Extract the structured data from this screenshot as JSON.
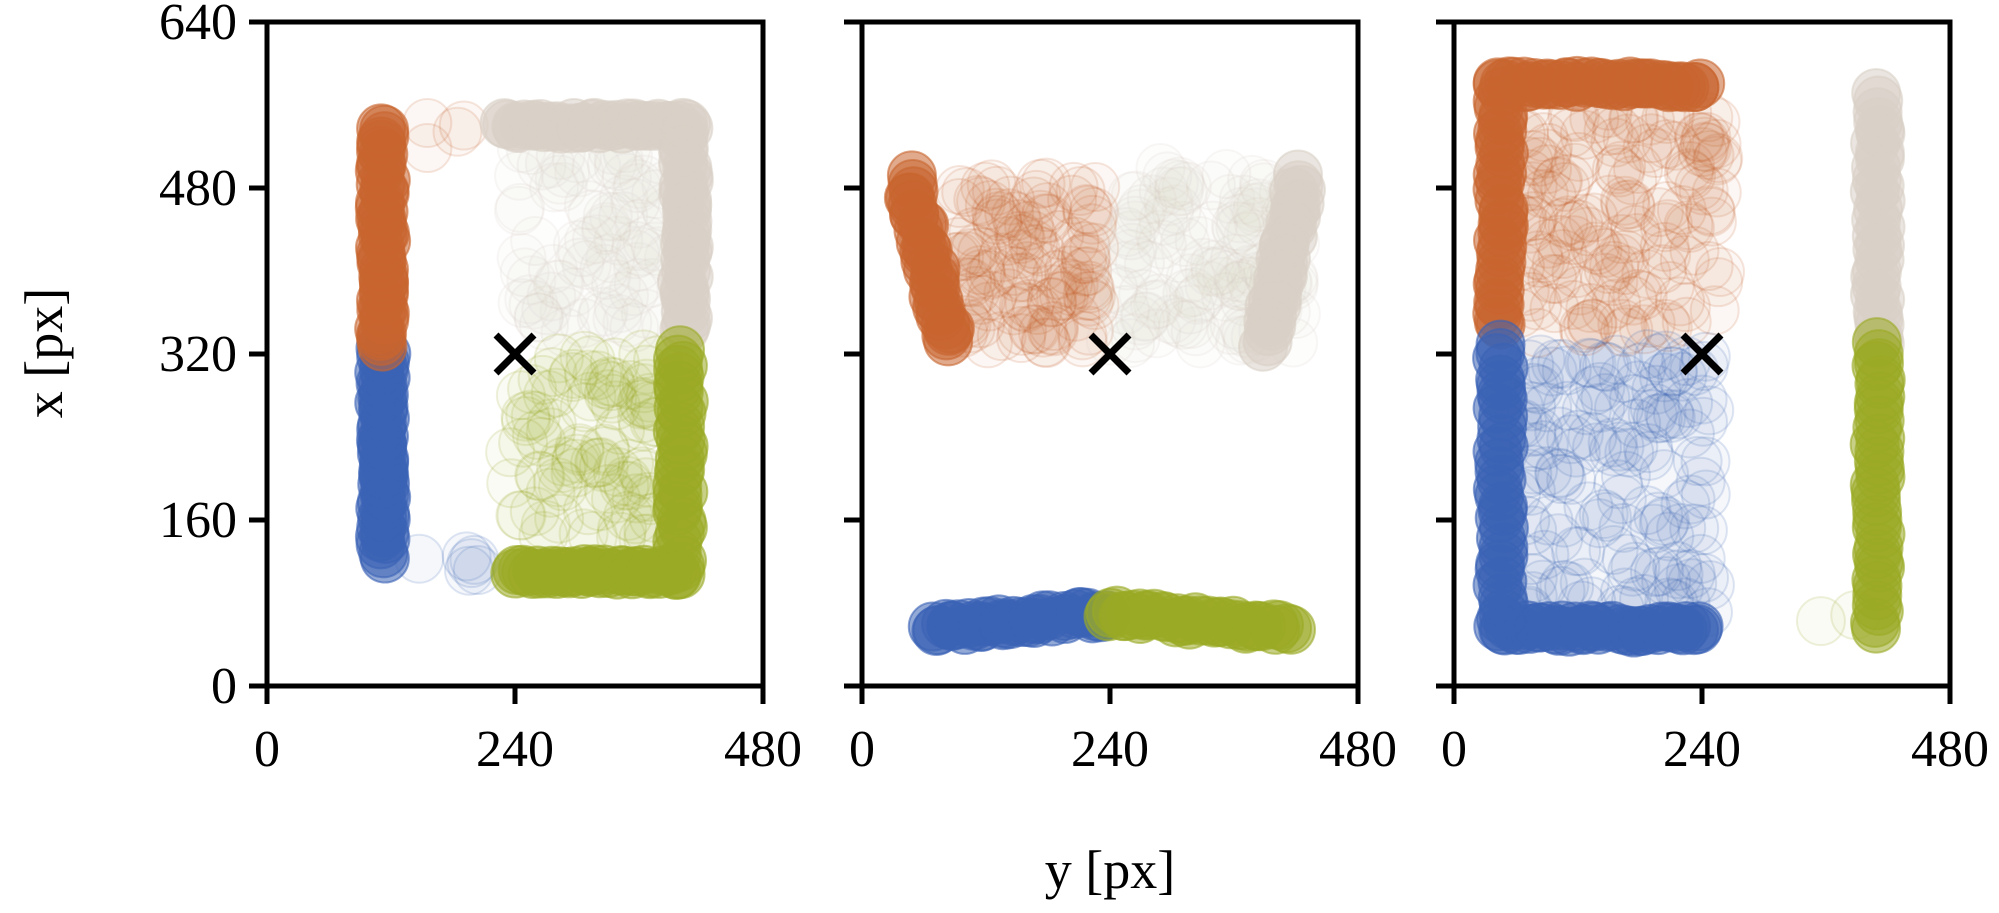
{
  "chart_data": {
    "type": "scatter",
    "xlabel": "y [px]",
    "ylabel": "x [px]",
    "xlim": [
      0,
      480
    ],
    "ylim": [
      0,
      640
    ],
    "xticks": [
      "0",
      "240",
      "480"
    ],
    "yticks": [
      "0",
      "160",
      "320",
      "480",
      "640"
    ],
    "colors": {
      "blue": "#3b63b5",
      "orange": "#c8652f",
      "beige": "#d8d0c7",
      "green": "#9aaa24"
    },
    "center_marker": {
      "symbol": "×",
      "x": 240,
      "y": 320
    },
    "panels": [
      {
        "series": [
          {
            "color": "blue",
            "strokes": [
              {
                "points": [
                  [
                    112,
                    125
                  ],
                  [
                    112,
                    325
                  ]
                ],
                "density": 42,
                "jitter": 7
              }
            ],
            "clouds": [
              {
                "x": [
                  130,
                  230
                ],
                "y": [
                  105,
                  125
                ],
                "n": 6
              }
            ]
          },
          {
            "color": "orange",
            "strokes": [
              {
                "points": [
                  [
                    112,
                    325
                  ],
                  [
                    112,
                    540
                  ]
                ],
                "density": 42,
                "jitter": 7
              }
            ],
            "clouds": [
              {
                "x": [
                  150,
                  210
                ],
                "y": [
                  510,
                  545
                ],
                "n": 4
              }
            ]
          },
          {
            "color": "beige",
            "strokes": [
              {
                "points": [
                  [
                    230,
                    540
                  ],
                  [
                    405,
                    540
                  ]
                ],
                "density": 34,
                "jitter": 6
              },
              {
                "points": [
                  [
                    405,
                    540
                  ],
                  [
                    405,
                    345
                  ]
                ],
                "density": 30,
                "jitter": 7
              }
            ],
            "clouds": [
              {
                "x": [
                  240,
                  390
                ],
                "y": [
                  340,
                  520
                ],
                "n": 90
              }
            ]
          },
          {
            "color": "green",
            "strokes": [
              {
                "points": [
                  [
                    240,
                    110
                  ],
                  [
                    400,
                    110
                  ]
                ],
                "density": 36,
                "jitter": 6
              },
              {
                "points": [
                  [
                    400,
                    110
                  ],
                  [
                    400,
                    325
                  ]
                ],
                "density": 30,
                "jitter": 7
              }
            ],
            "clouds": [
              {
                "x": [
                  235,
                  380
                ],
                "y": [
                  140,
                  320
                ],
                "n": 100
              }
            ]
          }
        ]
      },
      {
        "series": [
          {
            "color": "blue",
            "strokes": [
              {
                "points": [
                  [
                    65,
                    55
                  ],
                  [
                    235,
                    70
                  ]
                ],
                "density": 36,
                "jitter": 8
              }
            ],
            "clouds": []
          },
          {
            "color": "green",
            "strokes": [
              {
                "points": [
                  [
                    235,
                    70
                  ],
                  [
                    415,
                    55
                  ]
                ],
                "density": 36,
                "jitter": 8
              }
            ],
            "clouds": []
          },
          {
            "color": "orange",
            "strokes": [
              {
                "points": [
                  [
                    45,
                    490
                  ],
                  [
                    85,
                    330
                  ]
                ],
                "density": 30,
                "jitter": 8
              }
            ],
            "clouds": [
              {
                "x": [
                  90,
                  230
                ],
                "y": [
                  330,
                  490
                ],
                "n": 120
              }
            ]
          },
          {
            "color": "beige",
            "strokes": [
              {
                "points": [
                  [
                    425,
                    490
                  ],
                  [
                    390,
                    330
                  ]
                ],
                "density": 30,
                "jitter": 8
              }
            ],
            "clouds": [
              {
                "x": [
                  240,
                  420
                ],
                "y": [
                  330,
                  500
                ],
                "n": 130
              }
            ]
          }
        ]
      },
      {
        "series": [
          {
            "color": "orange",
            "strokes": [
              {
                "points": [
                  [
                    45,
                    580
                  ],
                  [
                    240,
                    580
                  ]
                ],
                "density": 38,
                "jitter": 7
              },
              {
                "points": [
                  [
                    45,
                    580
                  ],
                  [
                    45,
                    345
                  ]
                ],
                "density": 34,
                "jitter": 7
              }
            ],
            "clouds": [
              {
                "x": [
                  60,
                  260
                ],
                "y": [
                  340,
                  560
                ],
                "n": 160
              }
            ]
          },
          {
            "color": "blue",
            "strokes": [
              {
                "points": [
                  [
                    45,
                    55
                  ],
                  [
                    240,
                    55
                  ]
                ],
                "density": 38,
                "jitter": 7
              },
              {
                "points": [
                  [
                    45,
                    55
                  ],
                  [
                    45,
                    330
                  ]
                ],
                "density": 34,
                "jitter": 7
              }
            ],
            "clouds": [
              {
                "x": [
                  60,
                  250
                ],
                "y": [
                  70,
                  320
                ],
                "n": 150
              }
            ]
          },
          {
            "color": "beige",
            "strokes": [
              {
                "points": [
                  [
                    410,
                    330
                  ],
                  [
                    410,
                    570
                  ]
                ],
                "density": 30,
                "jitter": 6
              }
            ],
            "clouds": []
          },
          {
            "color": "green",
            "strokes": [
              {
                "points": [
                  [
                    410,
                    55
                  ],
                  [
                    410,
                    330
                  ]
                ],
                "density": 34,
                "jitter": 6
              }
            ],
            "clouds": [
              {
                "x": [
                  350,
                  390
                ],
                "y": [
                  50,
                  70
                ],
                "n": 2
              }
            ]
          }
        ]
      }
    ]
  }
}
